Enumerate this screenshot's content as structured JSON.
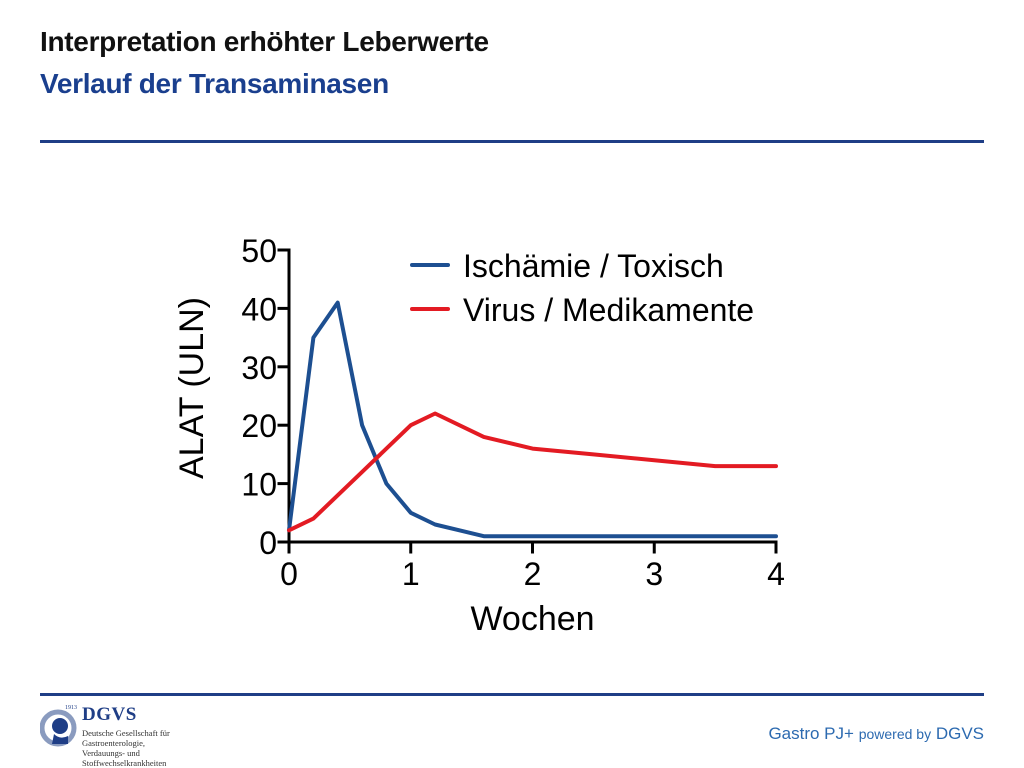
{
  "slide": {
    "title": "Interpretation erhöhter Leberwerte",
    "subtitle": "Verlauf der Transaminasen"
  },
  "footer": {
    "brand": "Gastro PJ+",
    "powered_by": "powered by",
    "org": "DGVS"
  },
  "logo": {
    "icon": "dgvs-head-logo-icon",
    "year": "1913",
    "name": "DGVS",
    "lines": [
      "Deutsche Gesellschaft für",
      "Gastroenterologie,",
      "Verdauungs- und",
      "Stoffwechselkrankheiten"
    ]
  },
  "colors": {
    "accent_blue": "#1f3e86",
    "series_blue": "#1d4f91",
    "series_red": "#e31b23",
    "footer_text": "#2c6ab0"
  },
  "chart_data": {
    "type": "line",
    "xlabel": "Wochen",
    "ylabel": "ALAT (ULN)",
    "xlim": [
      0,
      4
    ],
    "ylim": [
      0,
      50
    ],
    "xticks": [
      0,
      1,
      2,
      3,
      4
    ],
    "yticks": [
      0,
      10,
      20,
      30,
      40,
      50
    ],
    "grid": false,
    "legend_position": "top-right",
    "series": [
      {
        "name": "Ischämie / Toxisch",
        "color": "#1d4f91",
        "x": [
          0,
          0.2,
          0.4,
          0.6,
          0.8,
          1.0,
          1.2,
          1.4,
          1.6,
          2.0,
          3.0,
          4.0
        ],
        "y": [
          2,
          35,
          41,
          20,
          10,
          5,
          3,
          2,
          1,
          1,
          1,
          1
        ]
      },
      {
        "name": "Virus / Medikamente",
        "color": "#e31b23",
        "x": [
          0,
          0.2,
          0.4,
          0.6,
          0.8,
          1.0,
          1.2,
          1.6,
          2.0,
          2.5,
          3.0,
          3.5,
          4.0
        ],
        "y": [
          2,
          4,
          8,
          12,
          16,
          20,
          22,
          18,
          16,
          15,
          14,
          13,
          13
        ]
      }
    ]
  }
}
